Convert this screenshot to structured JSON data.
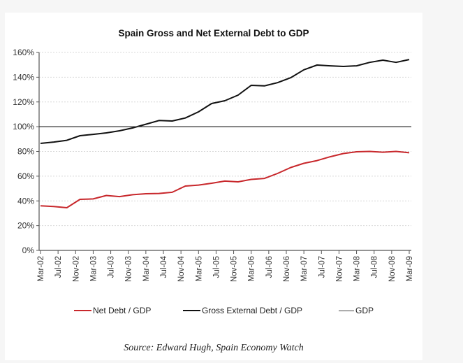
{
  "chart_data": {
    "type": "line",
    "title": "Spain Gross and Net External Debt to GDP",
    "xlabel": "",
    "ylabel": "",
    "ylim": [
      0,
      160
    ],
    "yticks": [
      0,
      20,
      40,
      60,
      80,
      100,
      120,
      140,
      160
    ],
    "ytick_labels": [
      "0%",
      "20%",
      "40%",
      "60%",
      "80%",
      "100%",
      "120%",
      "140%",
      "160%"
    ],
    "grid": true,
    "legend_position": "bottom",
    "x_tick_labels": [
      "Mar-02",
      "Jul-02",
      "Nov-02",
      "Mar-03",
      "Jul-03",
      "Nov-03",
      "Mar-04",
      "Jul-04",
      "Nov-04",
      "Mar-05",
      "Jul-05",
      "Nov-05",
      "Mar-06",
      "Jul-06",
      "Nov-06",
      "Mar-07",
      "Jul-07",
      "Nov-07",
      "Mar-08",
      "Jul-08",
      "Nov-08",
      "Mar-09"
    ],
    "x": [
      "Mar-02",
      "Jun-02",
      "Sep-02",
      "Dec-02",
      "Mar-03",
      "Jun-03",
      "Sep-03",
      "Dec-03",
      "Mar-04",
      "Jun-04",
      "Sep-04",
      "Dec-04",
      "Mar-05",
      "Jun-05",
      "Sep-05",
      "Dec-05",
      "Mar-06",
      "Jun-06",
      "Sep-06",
      "Dec-06",
      "Mar-07",
      "Jun-07",
      "Sep-07",
      "Dec-07",
      "Mar-08",
      "Jun-08",
      "Sep-08",
      "Dec-08",
      "Mar-09"
    ],
    "series": [
      {
        "name": "Net Debt / GDP",
        "color": "#c8282c",
        "values": [
          36,
          35.5,
          34.5,
          41.3,
          41.6,
          44.4,
          43.5,
          45,
          45.8,
          46,
          47,
          52,
          52.8,
          54.3,
          56,
          55.4,
          57.4,
          58.2,
          62.2,
          67,
          70.4,
          72.6,
          75.7,
          78.3,
          79.7,
          80,
          79.4,
          80,
          78.9
        ]
      },
      {
        "name": "Gross External Debt / GDP",
        "color": "#111111",
        "values": [
          86.5,
          87.6,
          89,
          92.7,
          93.8,
          95,
          96.7,
          99,
          102,
          105,
          104.6,
          107,
          112,
          118.7,
          121,
          125.5,
          133.4,
          133,
          135.6,
          139.6,
          146,
          149.8,
          149.2,
          148.7,
          149.2,
          152,
          153.8,
          152,
          154.3
        ]
      },
      {
        "name": "GDP",
        "color": "#333333",
        "values": [
          100,
          100,
          100,
          100,
          100,
          100,
          100,
          100,
          100,
          100,
          100,
          100,
          100,
          100,
          100,
          100,
          100,
          100,
          100,
          100,
          100,
          100,
          100,
          100,
          100,
          100,
          100,
          100,
          100
        ]
      }
    ],
    "source": "Source: Edward Hugh, Spain Economy Watch"
  }
}
